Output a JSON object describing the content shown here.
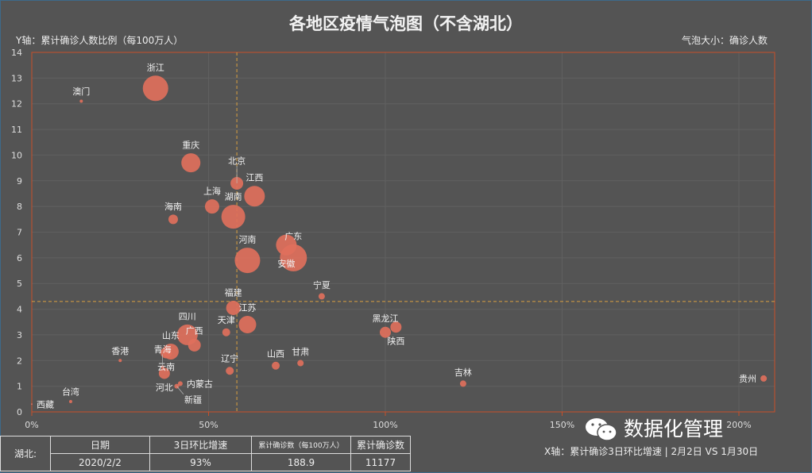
{
  "title": "各地区疫情气泡图（不含湖北）",
  "y_axis_label": "Y轴：累计确诊人数比例（每100万人）",
  "size_label": "气泡大小：确诊人数",
  "x_axis_label": "X轴：累计确诊3日环比增速 | 2月2日 VS 1月30日",
  "brand": "数据化管理",
  "colors": {
    "bubble": "#e0705c",
    "border": "#c8502a",
    "refline": "#d9a040",
    "background": "#545454"
  },
  "chart_data": {
    "type": "scatter",
    "xlim": [
      0,
      210
    ],
    "ylim": [
      0,
      14
    ],
    "x_ticks": [
      "0%",
      "50%",
      "100%",
      "150%",
      "200%"
    ],
    "x_tick_values": [
      0,
      50,
      100,
      150,
      200
    ],
    "y_ticks": [
      "0",
      "1",
      "2",
      "3",
      "4",
      "5",
      "6",
      "7",
      "8",
      "9",
      "10",
      "11",
      "12",
      "13",
      "14"
    ],
    "grid": true,
    "reference_lines": {
      "x": 58,
      "y": 4.3
    },
    "points": [
      {
        "name": "浙江",
        "x": 35,
        "y": 12.6,
        "size": 16
      },
      {
        "name": "澳门",
        "x": 14,
        "y": 12.1,
        "size": 2
      },
      {
        "name": "重庆",
        "x": 45,
        "y": 9.7,
        "size": 12
      },
      {
        "name": "北京",
        "x": 58,
        "y": 8.9,
        "size": 8
      },
      {
        "name": "江西",
        "x": 63,
        "y": 8.4,
        "size": 13
      },
      {
        "name": "上海",
        "x": 51,
        "y": 8.0,
        "size": 9
      },
      {
        "name": "湖南",
        "x": 57,
        "y": 7.6,
        "size": 15
      },
      {
        "name": "海南",
        "x": 40,
        "y": 7.5,
        "size": 6
      },
      {
        "name": "安徽",
        "x": 72,
        "y": 6.5,
        "size": 13
      },
      {
        "name": "广东",
        "x": 74,
        "y": 6.0,
        "size": 17
      },
      {
        "name": "河南",
        "x": 61,
        "y": 5.9,
        "size": 16
      },
      {
        "name": "宁夏",
        "x": 82,
        "y": 4.5,
        "size": 4
      },
      {
        "name": "福建",
        "x": 57,
        "y": 4.05,
        "size": 9
      },
      {
        "name": "江苏",
        "x": 61,
        "y": 3.4,
        "size": 11
      },
      {
        "name": "天津",
        "x": 55,
        "y": 3.1,
        "size": 5
      },
      {
        "name": "四川",
        "x": 44,
        "y": 3.0,
        "size": 13
      },
      {
        "name": "广西",
        "x": 46,
        "y": 2.6,
        "size": 8
      },
      {
        "name": "山东",
        "x": 39.3,
        "y": 2.35,
        "size": 10
      },
      {
        "name": "云南",
        "x": 38,
        "y": 2.3,
        "size": 7
      },
      {
        "name": "青海",
        "x": 37,
        "y": 1.75,
        "size": 2
      },
      {
        "name": "河北",
        "x": 37.5,
        "y": 1.5,
        "size": 7
      },
      {
        "name": "内蒙古",
        "x": 42,
        "y": 1.1,
        "size": 3
      },
      {
        "name": "新疆",
        "x": 41,
        "y": 1.0,
        "size": 3
      },
      {
        "name": "辽宁",
        "x": 56,
        "y": 1.6,
        "size": 5
      },
      {
        "name": "山西",
        "x": 69,
        "y": 1.8,
        "size": 5
      },
      {
        "name": "甘肃",
        "x": 76,
        "y": 1.9,
        "size": 4
      },
      {
        "name": "黑龙江",
        "x": 100,
        "y": 3.1,
        "size": 7
      },
      {
        "name": "陕西",
        "x": 103,
        "y": 3.3,
        "size": 7
      },
      {
        "name": "香港",
        "x": 25,
        "y": 2.0,
        "size": 2
      },
      {
        "name": "台湾",
        "x": 11,
        "y": 0.4,
        "size": 2
      },
      {
        "name": "西藏",
        "x": 0,
        "y": 0.3,
        "size": 1
      },
      {
        "name": "吉林",
        "x": 122,
        "y": 1.1,
        "size": 4
      },
      {
        "name": "贵州",
        "x": 207,
        "y": 1.3,
        "size": 4
      }
    ]
  },
  "hubei_table": {
    "row_label": "湖北:",
    "headers": [
      "日期",
      "3日环比增速",
      "累计确诊数（每100万人）",
      "累计确诊数"
    ],
    "values": [
      "2020/2/2",
      "93%",
      "188.9",
      "11177"
    ]
  }
}
